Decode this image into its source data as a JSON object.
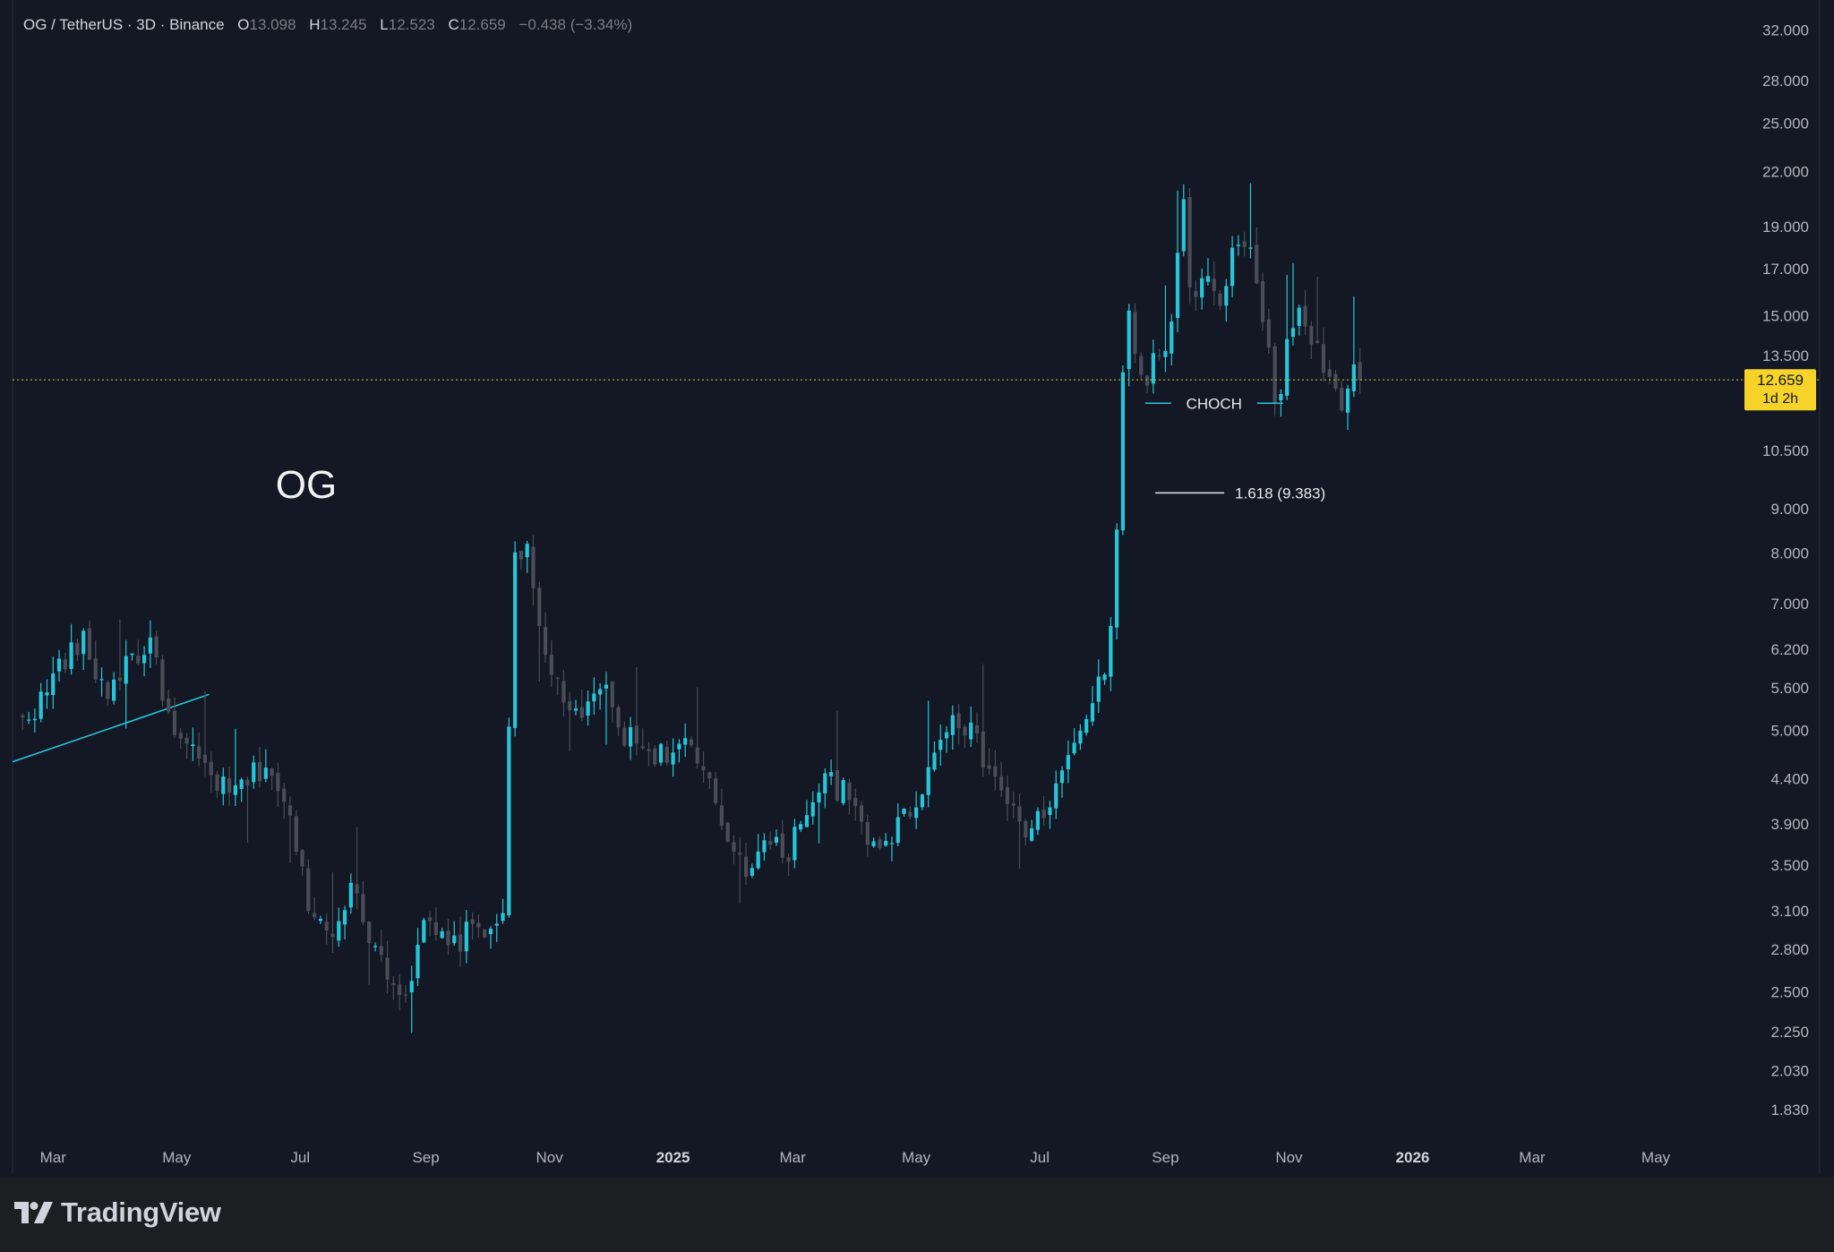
{
  "header": {
    "symbol_text": "OG / TetherUS · 3D · Binance",
    "o_key": "O",
    "o_val": "13.098",
    "h_key": "H",
    "h_val": "13.245",
    "l_key": "L",
    "l_val": "12.523",
    "c_key": "C",
    "c_val": "12.659",
    "change": "−0.438 (−3.34%)"
  },
  "brand": {
    "name": "TradingView"
  },
  "colors": {
    "background": "#141824",
    "up": "#26c6da",
    "down": "#4a4d57",
    "price_tag": "#f5d328",
    "axis_text": "#b2b5be"
  },
  "chart_data": {
    "type": "candlestick",
    "scale": "log",
    "ylim": [
      1.7,
      34
    ],
    "y_ticks": [
      "32.000",
      "28.000",
      "25.000",
      "22.000",
      "19.000",
      "17.000",
      "15.000",
      "13.500",
      "10.500",
      "9.000",
      "8.000",
      "7.000",
      "6.200",
      "5.600",
      "5.000",
      "4.400",
      "3.900",
      "3.500",
      "3.100",
      "2.800",
      "2.500",
      "2.250",
      "2.030",
      "1.830"
    ],
    "x_ticks": [
      {
        "label": "Mar",
        "date": "2024-03-01"
      },
      {
        "label": "May",
        "date": "2024-05-01"
      },
      {
        "label": "Jul",
        "date": "2024-07-01"
      },
      {
        "label": "Sep",
        "date": "2024-09-01"
      },
      {
        "label": "Nov",
        "date": "2024-11-01"
      },
      {
        "label": "2025",
        "date": "2025-01-01"
      },
      {
        "label": "Mar",
        "date": "2025-03-01"
      },
      {
        "label": "May",
        "date": "2025-05-01"
      },
      {
        "label": "Jul",
        "date": "2025-07-01"
      },
      {
        "label": "Sep",
        "date": "2025-09-01"
      },
      {
        "label": "Nov",
        "date": "2025-11-01"
      },
      {
        "label": "2026",
        "date": "2026-01-01"
      },
      {
        "label": "Mar",
        "date": "2026-03-01"
      },
      {
        "label": "May",
        "date": "2026-05-01"
      }
    ],
    "x_range": [
      "2024-02-10",
      "2026-06-12"
    ],
    "last_price": {
      "label": "12.659",
      "countdown": "1d 2h",
      "value": 12.659
    },
    "annotations": {
      "symbol_label": "OG",
      "choch_label": "CHOCH",
      "choch_level": 11.9,
      "choch_from": "2025-08-22",
      "choch_to": "2025-10-29",
      "fib_label": "1.618 (9.383)",
      "fib_level": 9.383,
      "fib_from": "2025-08-27",
      "fib_to": "2025-09-30",
      "trendline": [
        [
          "2024-02-10",
          4.6
        ],
        [
          "2024-05-17",
          5.5
        ]
      ]
    },
    "waypoints": [
      [
        "2024-02-12",
        5.1
      ],
      [
        "2024-02-24",
        5.4
      ],
      [
        "2024-03-05",
        6.0
      ],
      [
        "2024-03-16",
        6.3
      ],
      [
        "2024-03-27",
        5.5
      ],
      [
        "2024-04-08",
        6.1
      ],
      [
        "2024-04-20",
        6.2
      ],
      [
        "2024-04-29",
        4.9
      ],
      [
        "2024-05-12",
        4.6
      ],
      [
        "2024-05-27",
        4.2
      ],
      [
        "2024-06-06",
        4.4
      ],
      [
        "2024-06-15",
        4.6
      ],
      [
        "2024-06-26",
        3.9
      ],
      [
        "2024-07-05",
        3.2
      ],
      [
        "2024-07-15",
        2.9
      ],
      [
        "2024-07-25",
        3.3
      ],
      [
        "2024-08-05",
        2.9
      ],
      [
        "2024-08-15",
        2.6
      ],
      [
        "2024-08-23",
        2.5
      ],
      [
        "2024-09-01",
        3.0
      ],
      [
        "2024-09-12",
        2.8
      ],
      [
        "2024-09-24",
        2.95
      ],
      [
        "2024-10-05",
        3.0
      ],
      [
        "2024-10-08",
        2.7
      ],
      [
        "2024-10-11",
        4.1
      ],
      [
        "2024-10-14",
        8.0
      ],
      [
        "2024-10-20",
        8.2
      ],
      [
        "2024-10-29",
        6.1
      ],
      [
        "2024-11-08",
        5.5
      ],
      [
        "2024-11-16",
        5.0
      ],
      [
        "2024-11-26",
        5.7
      ],
      [
        "2024-12-06",
        5.0
      ],
      [
        "2024-12-16",
        4.8
      ],
      [
        "2024-12-26",
        4.7
      ],
      [
        "2025-01-07",
        4.8
      ],
      [
        "2025-01-17",
        4.4
      ],
      [
        "2025-01-27",
        3.8
      ],
      [
        "2025-02-06",
        3.5
      ],
      [
        "2025-02-16",
        3.7
      ],
      [
        "2025-02-26",
        3.6
      ],
      [
        "2025-03-08",
        4.1
      ],
      [
        "2025-03-18",
        4.4
      ],
      [
        "2025-03-28",
        4.2
      ],
      [
        "2025-04-07",
        3.7
      ],
      [
        "2025-04-19",
        3.8
      ],
      [
        "2025-04-29",
        4.1
      ],
      [
        "2025-05-09",
        4.6
      ],
      [
        "2025-05-19",
        5.3
      ],
      [
        "2025-05-27",
        5.0
      ],
      [
        "2025-06-04",
        4.6
      ],
      [
        "2025-06-14",
        4.2
      ],
      [
        "2025-06-22",
        3.8
      ],
      [
        "2025-07-03",
        4.0
      ],
      [
        "2025-07-09",
        4.3
      ],
      [
        "2025-07-17",
        4.7
      ],
      [
        "2025-07-25",
        5.3
      ],
      [
        "2025-08-03",
        5.8
      ],
      [
        "2025-08-07",
        7.3
      ],
      [
        "2025-08-10",
        12.5
      ],
      [
        "2025-08-14",
        15.0
      ],
      [
        "2025-08-20",
        12.6
      ],
      [
        "2025-08-28",
        13.4
      ],
      [
        "2025-09-02",
        14.0
      ],
      [
        "2025-09-06",
        15.2
      ],
      [
        "2025-09-09",
        22.8
      ],
      [
        "2025-09-12",
        15.5
      ],
      [
        "2025-09-20",
        16.8
      ],
      [
        "2025-09-28",
        15.2
      ],
      [
        "2025-10-04",
        17.5
      ],
      [
        "2025-10-10",
        18.0
      ],
      [
        "2025-10-16",
        16.8
      ],
      [
        "2025-10-22",
        13.5
      ],
      [
        "2025-10-26",
        11.3
      ],
      [
        "2025-10-31",
        13.8
      ],
      [
        "2025-11-06",
        15.3
      ],
      [
        "2025-11-13",
        14.0
      ],
      [
        "2025-11-20",
        12.6
      ],
      [
        "2025-11-26",
        11.8
      ],
      [
        "2025-12-01",
        12.8
      ],
      [
        "2025-12-07",
        12.659
      ]
    ]
  }
}
